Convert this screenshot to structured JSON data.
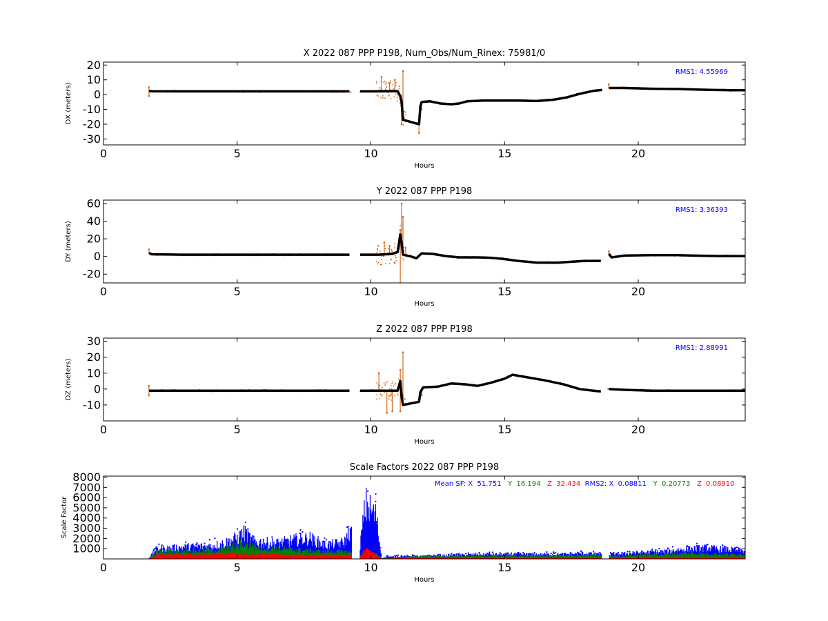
{
  "chart_data": [
    {
      "type": "scatter",
      "title": "X 2022 087 PPP  P198, Num_Obs/Num_Rinex: 75981/0",
      "xlabel": "Hours",
      "ylabel": "DX (meters)",
      "xlim": [
        0,
        24
      ],
      "ylim": [
        -34,
        22
      ],
      "xticks": [
        0,
        5,
        10,
        15,
        20
      ],
      "yticks": [
        -30,
        -20,
        -10,
        0,
        10,
        20
      ],
      "annotation": "RMS1:  4.55969",
      "series": [
        {
          "color": "#000000",
          "points": [
            [
              1.7,
              2.5
            ],
            [
              1.8,
              2.3
            ],
            [
              3,
              2.2
            ],
            [
              5,
              2.2
            ],
            [
              7,
              2.2
            ],
            [
              9.2,
              2.2
            ],
            [
              9.6,
              2.2
            ],
            [
              10,
              2.2
            ],
            [
              10.5,
              2.3
            ],
            [
              10.8,
              2.4
            ],
            [
              11.0,
              2.3
            ],
            [
              11.1,
              -1
            ],
            [
              11.15,
              -5
            ],
            [
              11.2,
              -17
            ],
            [
              11.5,
              -18.5
            ],
            [
              11.8,
              -20
            ],
            [
              11.85,
              -8
            ],
            [
              11.9,
              -5
            ],
            [
              12.2,
              -4.5
            ],
            [
              12.6,
              -6
            ],
            [
              13.0,
              -6.5
            ],
            [
              13.3,
              -6
            ],
            [
              13.6,
              -4.5
            ],
            [
              14.2,
              -4
            ],
            [
              15,
              -4
            ],
            [
              15.5,
              -4
            ],
            [
              16.2,
              -4.3
            ],
            [
              16.8,
              -3.5
            ],
            [
              17.3,
              -2
            ],
            [
              17.8,
              0.5
            ],
            [
              18.3,
              2.5
            ],
            [
              18.65,
              3.2
            ],
            [
              18.9,
              4.5
            ],
            [
              19.5,
              4.5
            ],
            [
              20.5,
              4
            ],
            [
              21.5,
              3.8
            ],
            [
              22.5,
              3.3
            ],
            [
              23.5,
              3
            ],
            [
              24,
              3
            ]
          ]
        },
        {
          "color": "#d2691e",
          "points": [
            [
              1.7,
              5
            ],
            [
              1.7,
              -1
            ],
            [
              10.4,
              12
            ],
            [
              10.7,
              8
            ],
            [
              10.9,
              10
            ],
            [
              11.1,
              -3
            ],
            [
              11.2,
              16
            ],
            [
              11.15,
              -20
            ],
            [
              11.8,
              -26
            ],
            [
              11.9,
              -10
            ],
            [
              18.9,
              7
            ]
          ]
        }
      ]
    },
    {
      "type": "scatter",
      "title": "Y 2022 087 PPP  P198",
      "xlabel": "Hours",
      "ylabel": "DY (meters)",
      "xlim": [
        0,
        24
      ],
      "ylim": [
        -30,
        64
      ],
      "xticks": [
        0,
        5,
        10,
        15,
        20
      ],
      "yticks": [
        -20,
        0,
        20,
        40,
        60
      ],
      "annotation": "RMS1:  3.36393",
      "series": [
        {
          "color": "#000000",
          "points": [
            [
              1.7,
              4
            ],
            [
              1.8,
              2.5
            ],
            [
              3,
              2
            ],
            [
              5,
              2
            ],
            [
              7,
              2
            ],
            [
              9.2,
              2
            ],
            [
              9.6,
              2
            ],
            [
              10.3,
              2
            ],
            [
              10.8,
              3
            ],
            [
              11.0,
              5
            ],
            [
              11.1,
              25
            ],
            [
              11.15,
              15
            ],
            [
              11.2,
              2
            ],
            [
              11.5,
              0
            ],
            [
              11.7,
              -2
            ],
            [
              11.9,
              3.5
            ],
            [
              12.3,
              3
            ],
            [
              12.8,
              0.5
            ],
            [
              13.3,
              -1
            ],
            [
              14,
              -1
            ],
            [
              14.5,
              -1.5
            ],
            [
              15,
              -3
            ],
            [
              15.5,
              -5
            ],
            [
              16.2,
              -7
            ],
            [
              17,
              -7
            ],
            [
              17.5,
              -6
            ],
            [
              18,
              -5
            ],
            [
              18.6,
              -5
            ],
            [
              18.9,
              3
            ],
            [
              19,
              -1
            ],
            [
              19.5,
              1
            ],
            [
              20.5,
              1.5
            ],
            [
              21.5,
              1.5
            ],
            [
              22,
              1
            ],
            [
              23,
              0.5
            ],
            [
              24,
              0.5
            ]
          ]
        },
        {
          "color": "#d2691e",
          "points": [
            [
              1.7,
              8
            ],
            [
              10.5,
              16
            ],
            [
              10.7,
              12
            ],
            [
              11.1,
              30
            ],
            [
              11.15,
              60
            ],
            [
              11.2,
              45
            ],
            [
              11.1,
              -30
            ],
            [
              11.3,
              10
            ],
            [
              18.9,
              6
            ]
          ]
        }
      ]
    },
    {
      "type": "scatter",
      "title": "Z 2022 087 PPP  P198",
      "xlabel": "Hours",
      "ylabel": "DZ (meters)",
      "xlim": [
        0,
        24
      ],
      "ylim": [
        -20,
        32
      ],
      "xticks": [
        0,
        5,
        10,
        15,
        20
      ],
      "yticks": [
        -10,
        0,
        10,
        20,
        30
      ],
      "annotation": "RMS1:  2.88991",
      "series": [
        {
          "color": "#000000",
          "points": [
            [
              1.7,
              -1
            ],
            [
              2.5,
              -1
            ],
            [
              3,
              -1
            ],
            [
              5,
              -1
            ],
            [
              7,
              -1
            ],
            [
              9.2,
              -1
            ],
            [
              9.6,
              -1
            ],
            [
              10.5,
              -1
            ],
            [
              11.0,
              -1
            ],
            [
              11.1,
              5
            ],
            [
              11.15,
              -5
            ],
            [
              11.2,
              -10
            ],
            [
              11.5,
              -9
            ],
            [
              11.8,
              -8
            ],
            [
              11.85,
              -2
            ],
            [
              11.95,
              1
            ],
            [
              12.5,
              1.5
            ],
            [
              13,
              3.5
            ],
            [
              13.5,
              3
            ],
            [
              14,
              2
            ],
            [
              14.5,
              4
            ],
            [
              15,
              6.5
            ],
            [
              15.3,
              9
            ],
            [
              15.8,
              7.5
            ],
            [
              16.5,
              5.5
            ],
            [
              17.2,
              3
            ],
            [
              17.8,
              0
            ],
            [
              18.3,
              -1
            ],
            [
              18.6,
              -1.5
            ],
            [
              18.9,
              0
            ],
            [
              19.5,
              -0.5
            ],
            [
              20.5,
              -1
            ],
            [
              21.5,
              -1
            ],
            [
              22.5,
              -1
            ],
            [
              24,
              -1
            ]
          ]
        },
        {
          "color": "#d2691e",
          "points": [
            [
              1.7,
              2
            ],
            [
              1.7,
              -4
            ],
            [
              10.3,
              10
            ],
            [
              10.6,
              -15
            ],
            [
              10.8,
              -14
            ],
            [
              11.1,
              12
            ],
            [
              11.2,
              23
            ],
            [
              11.1,
              -14
            ],
            [
              11.9,
              -4
            ]
          ]
        }
      ]
    },
    {
      "type": "scatter",
      "title": "Scale Factors 2022 087 PPP  P198",
      "xlabel": "Hours",
      "ylabel": "Scale Factor",
      "xlim": [
        0,
        24
      ],
      "ylim": [
        0,
        8100
      ],
      "xticks": [
        0,
        5,
        10,
        15,
        20
      ],
      "yticks": [
        1000,
        2000,
        3000,
        4000,
        5000,
        6000,
        7000,
        8000
      ],
      "annotation": {
        "prefix": "Mean SF: X  51.751",
        "y_text": "Y  16.194",
        "z_text": "Z  32.434",
        "rms2_text": "RMS2: X  0.08811",
        "rms2_y": "Y  0.20773",
        "rms2_z": "Z  0.08910"
      },
      "series": [
        {
          "color": "#0000ff",
          "profile": [
            [
              1.7,
              100
            ],
            [
              2.0,
              1100
            ],
            [
              3,
              1300
            ],
            [
              4,
              1400
            ],
            [
              4.5,
              1700
            ],
            [
              5,
              2300
            ],
            [
              5.3,
              2900
            ],
            [
              5.6,
              1900
            ],
            [
              6.5,
              1700
            ],
            [
              7.2,
              2100
            ],
            [
              7.7,
              2300
            ],
            [
              8.3,
              1500
            ],
            [
              9.0,
              1800
            ],
            [
              9.2,
              3000
            ],
            [
              9.6,
              1600
            ],
            [
              9.8,
              6000
            ],
            [
              10.2,
              4700
            ],
            [
              10.4,
              100
            ],
            [
              10.6,
              200
            ],
            [
              11.2,
              300
            ],
            [
              12,
              300
            ],
            [
              13,
              400
            ],
            [
              14,
              500
            ],
            [
              15,
              500
            ],
            [
              16,
              500
            ],
            [
              17,
              500
            ],
            [
              18,
              600
            ],
            [
              18.6,
              500
            ],
            [
              19.2,
              500
            ],
            [
              20,
              700
            ],
            [
              21,
              800
            ],
            [
              21.5,
              1000
            ],
            [
              22.5,
              1200
            ],
            [
              23.5,
              1000
            ],
            [
              24,
              900
            ]
          ]
        },
        {
          "color": "#008000",
          "profile": [
            [
              1.7,
              50
            ],
            [
              2.0,
              800
            ],
            [
              3,
              900
            ],
            [
              4,
              900
            ],
            [
              4.5,
              1000
            ],
            [
              5,
              1500
            ],
            [
              5.3,
              1600
            ],
            [
              6,
              1200
            ],
            [
              7,
              1000
            ],
            [
              8,
              800
            ],
            [
              9,
              800
            ],
            [
              9.6,
              500
            ],
            [
              9.8,
              600
            ],
            [
              10.2,
              500
            ],
            [
              10.4,
              50
            ],
            [
              11.2,
              200
            ],
            [
              12,
              300
            ],
            [
              13,
              300
            ],
            [
              14,
              350
            ],
            [
              15,
              350
            ],
            [
              16,
              350
            ],
            [
              17,
              350
            ],
            [
              18,
              400
            ],
            [
              18.6,
              350
            ],
            [
              19.2,
              300
            ],
            [
              20,
              450
            ],
            [
              21,
              500
            ],
            [
              22,
              600
            ],
            [
              23,
              500
            ],
            [
              24,
              500
            ]
          ]
        },
        {
          "color": "#ff0000",
          "profile": [
            [
              1.7,
              30
            ],
            [
              2.0,
              400
            ],
            [
              3,
              500
            ],
            [
              4,
              450
            ],
            [
              5,
              600
            ],
            [
              6,
              500
            ],
            [
              7,
              450
            ],
            [
              8,
              400
            ],
            [
              9,
              400
            ],
            [
              9.6,
              300
            ],
            [
              9.8,
              1000
            ],
            [
              10.2,
              500
            ],
            [
              10.4,
              30
            ],
            [
              11.2,
              100
            ],
            [
              12,
              150
            ],
            [
              13,
              150
            ],
            [
              14,
              150
            ],
            [
              15,
              150
            ],
            [
              16,
              150
            ],
            [
              17,
              150
            ],
            [
              18,
              150
            ],
            [
              18.6,
              150
            ],
            [
              19.2,
              100
            ],
            [
              20,
              200
            ],
            [
              21,
              200
            ],
            [
              22,
              200
            ],
            [
              23,
              200
            ],
            [
              24,
              200
            ]
          ]
        }
      ]
    }
  ]
}
